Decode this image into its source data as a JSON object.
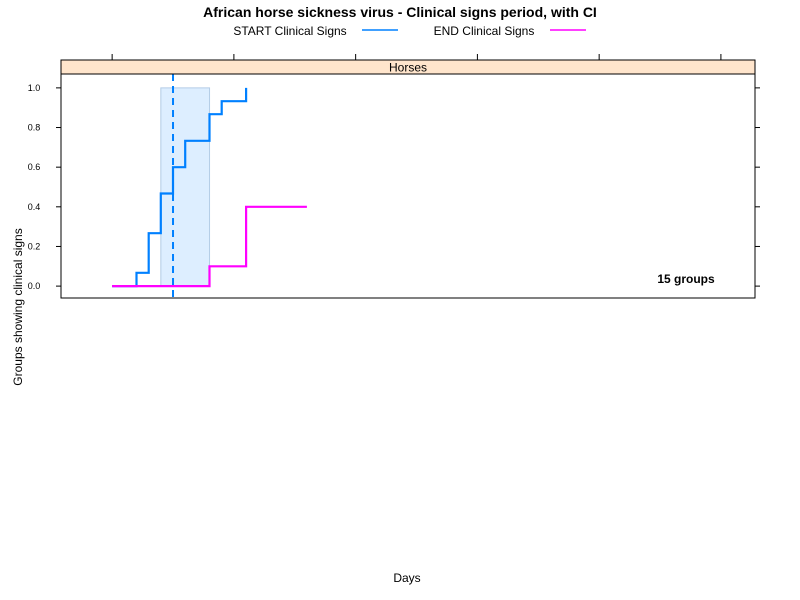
{
  "chart_data": {
    "type": "line",
    "title": "African horse sickness virus - Clinical signs period, with CI",
    "xlabel": "Days",
    "ylabel": "Groups showing clinical signs",
    "panel_label": "Horses",
    "annotation": "15 groups",
    "ylim": [
      -0.06,
      1.07
    ],
    "yticks": [
      0.0,
      0.2,
      0.4,
      0.6,
      0.8,
      1.0
    ],
    "ytick_labels": [
      "0.0",
      "0.2",
      "0.4",
      "0.6",
      "0.8",
      "1.0"
    ],
    "xlim": [
      -2.1,
      26.4
    ],
    "xticks": [
      0,
      5,
      10,
      15,
      20,
      25
    ],
    "x_tick_labels_shown": false,
    "grid": false,
    "legend_position": "top",
    "series": [
      {
        "name": "START Clinical Signs",
        "color": "#0080ff",
        "step": true,
        "x": [
          0,
          1,
          1.5,
          2,
          2.5,
          3,
          3.5,
          4,
          4.5,
          5,
          5.5
        ],
        "y": [
          0,
          0.067,
          0.267,
          0.467,
          0.6,
          0.733,
          0.733,
          0.867,
          0.933,
          0.933,
          1.0
        ]
      },
      {
        "name": "END Clinical Signs",
        "color": "#ff00ff",
        "step": true,
        "x": [
          0,
          4,
          5.5,
          8
        ],
        "y": [
          0,
          0.1,
          0.4,
          0.4
        ]
      }
    ],
    "ci_band": {
      "x_start": 2,
      "x_end": 4,
      "y_min": 0,
      "y_max": 1.0,
      "fill": "#ddeeff",
      "stroke": "#b3cce6"
    },
    "median_line": {
      "x": 2.5,
      "color": "#0080ff",
      "style": "dashed"
    },
    "strip_color": "#ffe5cc"
  }
}
